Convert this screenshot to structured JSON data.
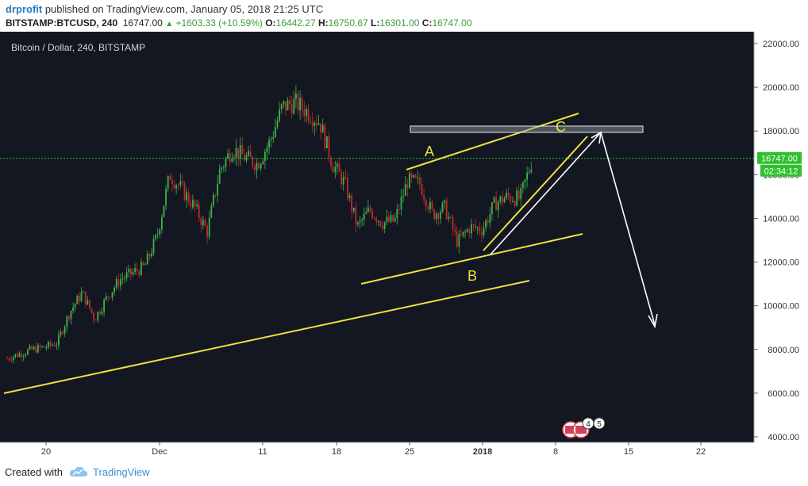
{
  "header": {
    "author": "drprofit",
    "published_text": " published on TradingView.com, January 05, 2018 21:25 UTC",
    "symbol": "BITSTAMP:BTCUSD, 240",
    "last": "16747.00",
    "change": "+1603.33 (+10.59%)",
    "o_label": "O:",
    "o_value": "16442.27",
    "h_label": "H:",
    "h_value": "16750.67",
    "l_label": "L:",
    "l_value": "16301.00",
    "c_label": "C:",
    "c_value": "16747.00"
  },
  "footer": {
    "created_with": "Created with",
    "brand": "TradingView"
  },
  "chart_data": {
    "type": "candlestick",
    "title": "Bitcoin / Dollar, 240, BITSTAMP",
    "ylim": [
      3800,
      22600
    ],
    "y_ticks": [
      "22000.00",
      "20000.00",
      "18000.00",
      "16000.00",
      "14000.00",
      "12000.00",
      "10000.00",
      "8000.00",
      "6000.00",
      "4000.00"
    ],
    "x_ticks": [
      "20",
      "Dec",
      "11",
      "18",
      "25",
      "2018",
      "8",
      "15",
      "22"
    ],
    "current_price_label": "16747.00",
    "countdown_label": "02:34:12",
    "annotations": [
      "A",
      "B",
      "C"
    ],
    "event_badges": [
      "4",
      "5"
    ],
    "colors": {
      "background": "#131722",
      "up": "#3fb24a",
      "down": "#c02a2a",
      "trendline": "#f0e040",
      "arrow": "#ffffff",
      "price_line": "#2fbf2f"
    },
    "path": [
      [
        "Nov 17",
        7600
      ],
      [
        "Nov 19",
        7800
      ],
      [
        "Nov 21",
        8000
      ],
      [
        "Nov 24",
        8100
      ],
      [
        "Nov 26",
        8300
      ],
      [
        "Nov 28",
        9700
      ],
      [
        "Nov 29",
        10600
      ],
      [
        "Nov 30",
        9400
      ],
      [
        "Dec 1",
        10400
      ],
      [
        "Dec 3",
        11200
      ],
      [
        "Dec 4",
        11500
      ],
      [
        "Dec 5",
        11800
      ],
      [
        "Dec 6",
        13200
      ],
      [
        "Dec 7",
        16000
      ],
      [
        "Dec 8",
        15300
      ],
      [
        "Dec 9",
        14500
      ],
      [
        "Dec 10",
        13400
      ],
      [
        "Dec 11",
        16200
      ],
      [
        "Dec 12",
        17200
      ],
      [
        "Dec 13",
        16800
      ],
      [
        "Dec 14",
        16500
      ],
      [
        "Dec 15",
        17500
      ],
      [
        "Dec 16",
        19100
      ],
      [
        "Dec 17",
        19300
      ],
      [
        "Dec 18",
        18900
      ],
      [
        "Dec 19",
        18400
      ],
      [
        "Dec 20",
        16500
      ],
      [
        "Dec 21",
        15600
      ],
      [
        "Dec 22",
        13600
      ],
      [
        "Dec 23",
        14400
      ],
      [
        "Dec 24",
        13800
      ],
      [
        "Dec 25",
        13900
      ],
      [
        "Dec 26",
        15700
      ],
      [
        "Dec 27",
        15600
      ],
      [
        "Dec 28",
        14200
      ],
      [
        "Dec 29",
        14500
      ],
      [
        "Dec 30",
        12900
      ],
      [
        "Dec 31",
        13600
      ],
      [
        "Jan 1",
        13500
      ],
      [
        "Jan 2",
        14700
      ],
      [
        "Jan 3",
        15000
      ],
      [
        "Jan 4",
        14900
      ],
      [
        "Jan 5",
        16747
      ]
    ]
  }
}
